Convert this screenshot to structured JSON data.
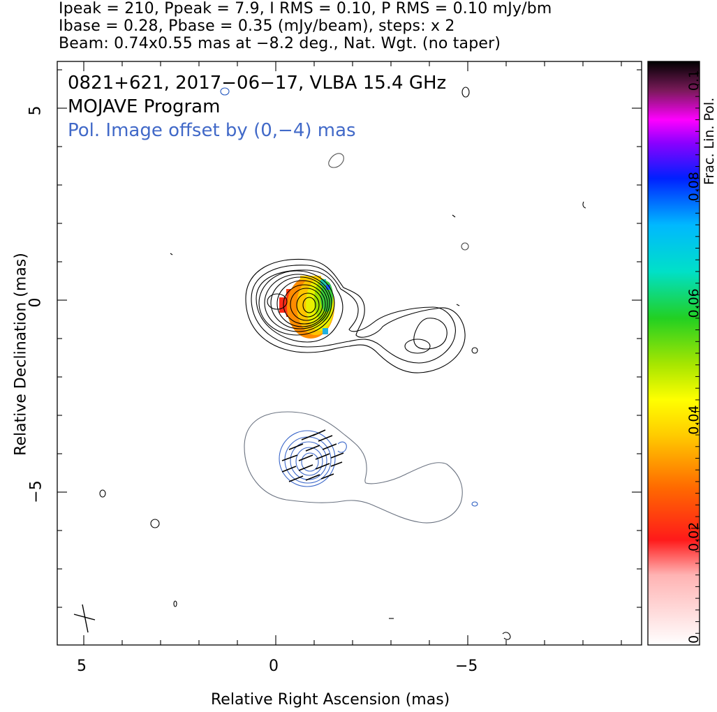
{
  "header": {
    "line1": "Ipeak = 210, Ppeak = 7.9, I RMS = 0.10, P RMS = 0.10 mJy/bm",
    "line2": "Ibase = 0.28, Pbase = 0.35 (mJy/beam), steps: x 2",
    "line3": "Beam: 0.74x0.55 mas at −8.2 deg., Nat. Wgt. (no taper)"
  },
  "overlay": {
    "source_line": "0821+621, 2017−06−17, VLBA 15.4 GHz",
    "program_line": "MOJAVE Program",
    "offset_note": "Pol. Image offset by (0,−4) mas"
  },
  "colors": {
    "total_intensity_contour": "#000000",
    "pol_contour": "#3a66c9",
    "base_pol_contour": "#6a7280",
    "evpa_ticks": "#000000",
    "note_blue": "#4169c8"
  },
  "chart_data": {
    "type": "heatmap",
    "xlabel": "Relative Right Ascension (mas)",
    "ylabel": "Relative Declination (mas)",
    "xlim": [
      5.5,
      -9.5
    ],
    "ylim": [
      -9,
      6.2
    ],
    "x_ticks": [
      5,
      0,
      -5
    ],
    "x_tick_labels": [
      "5",
      "0",
      "−5"
    ],
    "y_ticks": [
      5,
      0,
      -5
    ],
    "y_tick_labels": [
      "5",
      "0",
      "−5"
    ],
    "colorbar": {
      "label": "Frac. Lin. Pol.",
      "range": [
        0,
        0.1
      ],
      "ticks": [
        0,
        0.02,
        0.04,
        0.06,
        0.08,
        0.1
      ],
      "tick_labels": [
        "0",
        "0.02",
        "0.04",
        "0.06",
        "0.08",
        "0.1"
      ]
    },
    "fractional_polarization_peak_region": {
      "x_range": [
        -0.3,
        -1.6
      ],
      "y_range": [
        0.6,
        -1.0
      ],
      "min": 0.01,
      "max": 0.07
    },
    "beam": {
      "major_mas": 0.74,
      "minor_mas": 0.55,
      "pa_deg": -8.2
    }
  }
}
